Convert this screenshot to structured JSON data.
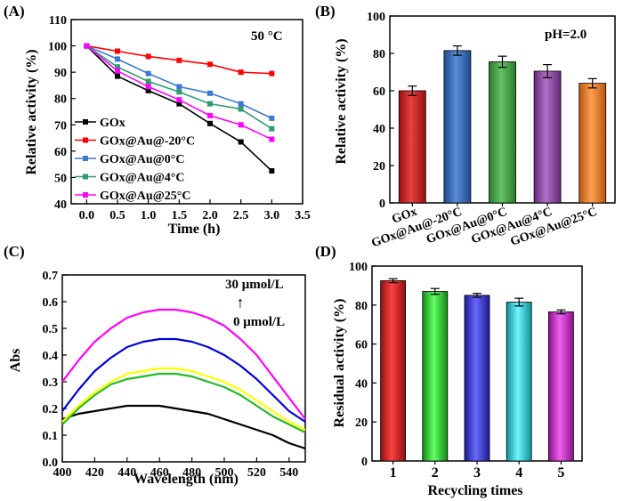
{
  "figure": {
    "panels": [
      {
        "label": "(A)"
      },
      {
        "label": "(B)"
      },
      {
        "label": "(C)"
      },
      {
        "label": "(D)"
      }
    ]
  },
  "chart_data": [
    {
      "panel": "(A)",
      "type": "line",
      "annotation": "50 °C",
      "xlabel": "Time (h)",
      "ylabel": "Relative activity (%)",
      "xlim": [
        -0.25,
        3.5
      ],
      "ylim": [
        40,
        110
      ],
      "xticks": [
        "0.0",
        "0.5",
        "1.0",
        "1.5",
        "2.0",
        "2.5",
        "3.0",
        "3.5"
      ],
      "yticks": [
        "40",
        "50",
        "60",
        "70",
        "80",
        "90",
        "100",
        "110"
      ],
      "x": [
        0,
        0.5,
        1.0,
        1.5,
        2.0,
        2.5,
        3.0
      ],
      "legend": "left",
      "series": [
        {
          "name": "GOx",
          "color": "#000000",
          "values": [
            100,
            88.5,
            83,
            78,
            70.5,
            63.5,
            52.5
          ]
        },
        {
          "name": "GOx@Au@-20°C",
          "color": "#ff0000",
          "values": [
            100,
            98,
            96,
            94.5,
            93,
            90,
            89.5
          ]
        },
        {
          "name": "GOx@Au@0°C",
          "color": "#3b78d8",
          "values": [
            100,
            95,
            89.5,
            84.5,
            82,
            78,
            72.5
          ]
        },
        {
          "name": "GOx@Au@4°C",
          "color": "#2e9e6e",
          "values": [
            100,
            92,
            86.5,
            82.5,
            78,
            76,
            68.5
          ]
        },
        {
          "name": "GOx@Au@25°C",
          "color": "#ff00ff",
          "values": [
            100,
            90.5,
            84.5,
            79.5,
            73.5,
            70,
            64.5
          ]
        }
      ]
    },
    {
      "panel": "(B)",
      "type": "bar",
      "annotation": "pH=2.0",
      "xlabel": "",
      "ylabel": "Relative activity (%)",
      "ylim": [
        0,
        100
      ],
      "yticks": [
        "0",
        "20",
        "40",
        "60",
        "80",
        "100"
      ],
      "categories": [
        "GOx",
        "GOx@Au@-20°C",
        "GOx@Au@0°C",
        "GOx@Au@4°C",
        "GOx@Au@25°C"
      ],
      "values": [
        60,
        81.5,
        75.5,
        70.5,
        64
      ],
      "errors": [
        2.5,
        2.5,
        3,
        3.5,
        2.5
      ],
      "colors": [
        "#d42020",
        "#2f66b3",
        "#3e9e3e",
        "#8c3fa0",
        "#f07a1a"
      ]
    },
    {
      "panel": "(C)",
      "type": "line",
      "xlabel": "Wavelength (nm)",
      "ylabel": "Abs",
      "xlim": [
        400,
        550
      ],
      "ylim": [
        0.0,
        0.7
      ],
      "xticks": [
        "400",
        "420",
        "440",
        "460",
        "480",
        "500",
        "520",
        "540"
      ],
      "yticks": [
        "0.0",
        "0.1",
        "0.2",
        "0.3",
        "0.4",
        "0.5",
        "0.6",
        "0.7"
      ],
      "annotation_top": "30 μmol/L",
      "annotation_arrow": "↑",
      "annotation_bottom": "0 μmol/L",
      "x": [
        400,
        410,
        420,
        430,
        440,
        450,
        460,
        470,
        480,
        490,
        500,
        510,
        520,
        530,
        540,
        550
      ],
      "series": [
        {
          "color": "#000000",
          "values": [
            0.16,
            0.18,
            0.19,
            0.2,
            0.21,
            0.21,
            0.21,
            0.2,
            0.19,
            0.18,
            0.16,
            0.14,
            0.12,
            0.1,
            0.07,
            0.05
          ]
        },
        {
          "color": "#22bb22",
          "values": [
            0.14,
            0.2,
            0.25,
            0.29,
            0.31,
            0.32,
            0.33,
            0.33,
            0.32,
            0.3,
            0.28,
            0.25,
            0.21,
            0.17,
            0.14,
            0.11
          ]
        },
        {
          "color": "#ffff00",
          "values": [
            0.15,
            0.21,
            0.26,
            0.3,
            0.33,
            0.34,
            0.35,
            0.35,
            0.34,
            0.32,
            0.3,
            0.27,
            0.23,
            0.19,
            0.15,
            0.12
          ]
        },
        {
          "color": "#0000dd",
          "values": [
            0.19,
            0.27,
            0.34,
            0.39,
            0.43,
            0.45,
            0.46,
            0.46,
            0.45,
            0.43,
            0.4,
            0.36,
            0.31,
            0.25,
            0.19,
            0.15
          ]
        },
        {
          "color": "#ff00ff",
          "values": [
            0.3,
            0.38,
            0.45,
            0.5,
            0.54,
            0.56,
            0.57,
            0.57,
            0.56,
            0.54,
            0.51,
            0.46,
            0.4,
            0.32,
            0.24,
            0.16
          ]
        }
      ]
    },
    {
      "panel": "(D)",
      "type": "bar",
      "xlabel": "Recycling times",
      "ylabel": "Residual activity (%)",
      "ylim": [
        0,
        100
      ],
      "yticks": [
        "0",
        "20",
        "40",
        "60",
        "80",
        "100"
      ],
      "categories": [
        "1",
        "2",
        "3",
        "4",
        "5"
      ],
      "values": [
        92.5,
        87,
        85,
        81.5,
        76.5
      ],
      "errors": [
        1,
        1.5,
        1,
        2,
        1
      ],
      "colors": [
        "#d42020",
        "#22cc22",
        "#3535d8",
        "#22d0d8",
        "#cc22cc"
      ]
    }
  ]
}
